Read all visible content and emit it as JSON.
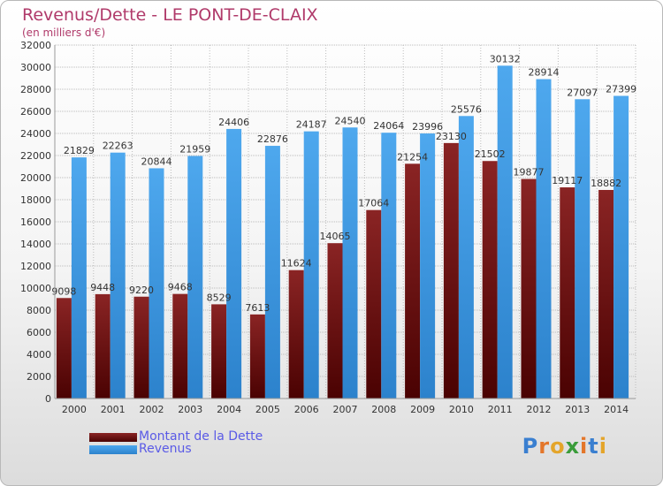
{
  "header": {
    "title": "Revenus/Dette - LE PONT-DE-CLAIX",
    "subtitle": "(en milliers d'€)"
  },
  "logo": {
    "text": "Proxiti"
  },
  "colors": {
    "dette": "#7a1414",
    "revenus": "#3d9ae6",
    "grid": "#bcbcbc",
    "axis_text": "#333333"
  },
  "chart_data": {
    "type": "bar",
    "title": "Revenus/Dette - LE PONT-DE-CLAIX",
    "subtitle": "(en milliers d'€)",
    "categories": [
      "2000",
      "2001",
      "2002",
      "2003",
      "2004",
      "2005",
      "2006",
      "2007",
      "2008",
      "2009",
      "2010",
      "2011",
      "2012",
      "2013",
      "2014"
    ],
    "series": [
      {
        "name": "Montant de la Dette",
        "values": [
          9098,
          9448,
          9220,
          9468,
          8529,
          7613,
          11624,
          14065,
          17064,
          21254,
          23130,
          21502,
          19877,
          19117,
          18882
        ],
        "labels": [
          "9098",
          "9448",
          "9220",
          "9468",
          "8529",
          "7613",
          "11624",
          "14065",
          "17064",
          "21254",
          "23130",
          "21502",
          "19877",
          "19117",
          "18882"
        ]
      },
      {
        "name": "Revenus",
        "values": [
          21829,
          22263,
          20844,
          21959,
          24406,
          22876,
          24187,
          24540,
          24064,
          23996,
          25576,
          30132,
          28914,
          27097,
          27399
        ],
        "labels": [
          "21829",
          "22263",
          "20844",
          "21959",
          "24406",
          "22876",
          "24187",
          "24540",
          "24064",
          "23996",
          "25576",
          "30132",
          "28914",
          "27097",
          "27399"
        ]
      }
    ],
    "yticks": [
      "0",
      "2000",
      "4000",
      "6000",
      "8000",
      "10000",
      "12000",
      "14000",
      "16000",
      "18000",
      "20000",
      "22000",
      "24000",
      "26000",
      "28000",
      "30000",
      "32000"
    ],
    "ylim": [
      0,
      32000
    ],
    "grid": true,
    "legend": "bottom-left"
  }
}
